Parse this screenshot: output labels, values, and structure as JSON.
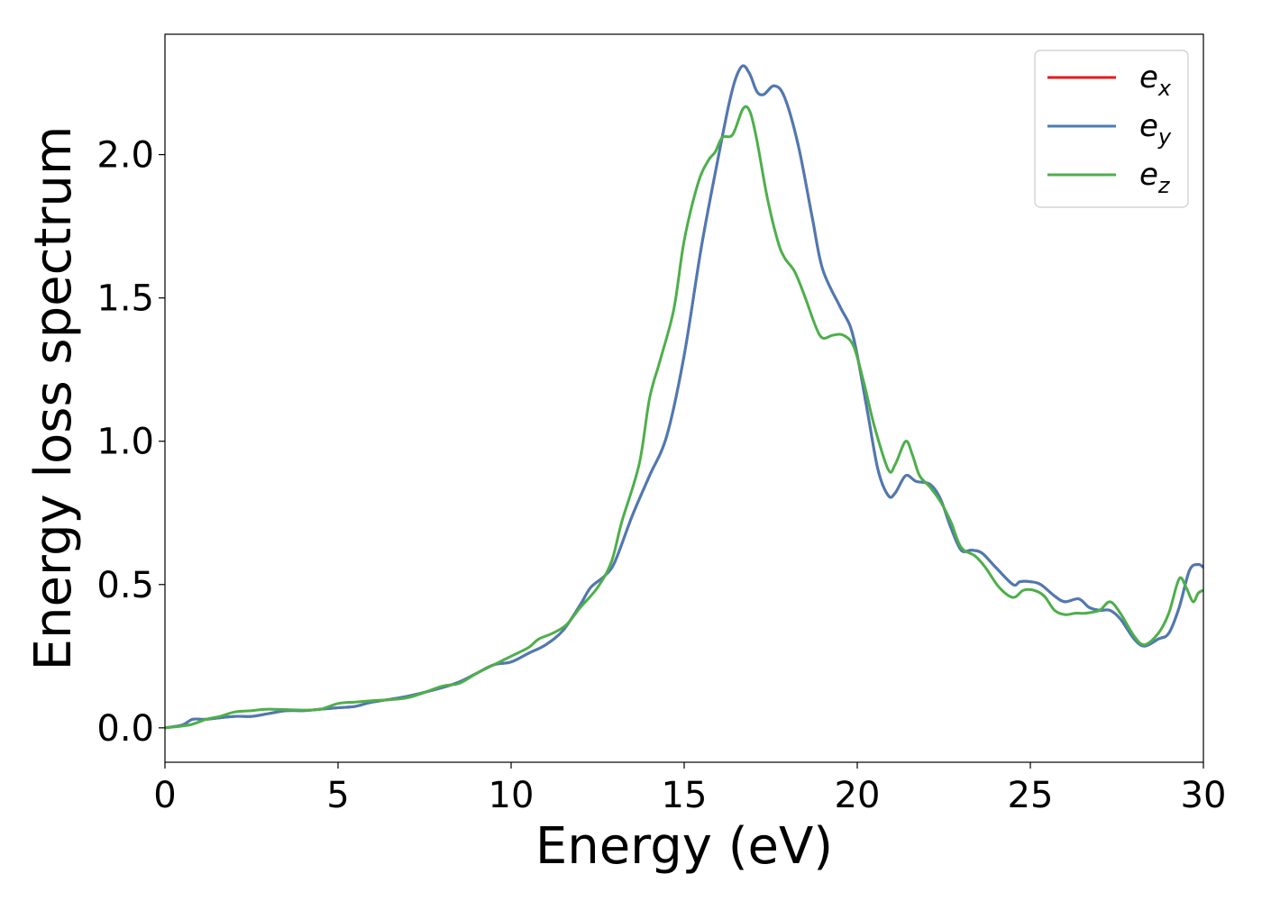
{
  "chart_data": {
    "type": "line",
    "title": "",
    "xlabel": "Energy (eV)",
    "ylabel": "Energy loss spectrum",
    "xlim": [
      0,
      30
    ],
    "ylim": [
      -0.12,
      2.42
    ],
    "x_ticks": [
      0,
      5,
      10,
      15,
      20,
      25,
      30
    ],
    "x_tick_labels": [
      "0",
      "5",
      "10",
      "15",
      "20",
      "25",
      "30"
    ],
    "y_ticks": [
      0.0,
      0.5,
      1.0,
      1.5,
      2.0
    ],
    "y_tick_labels": [
      "0.0",
      "0.5",
      "1.0",
      "1.5",
      "2.0"
    ],
    "grid": false,
    "legend_position": "top-right",
    "series": [
      {
        "name": "e_x",
        "label_base": "e",
        "label_sub": "x",
        "color": "#e41a1c",
        "points": [
          [
            0,
            0
          ],
          [
            0.5,
            0.01
          ],
          [
            0.8,
            0.03
          ],
          [
            1.2,
            0.03
          ],
          [
            2,
            0.04
          ],
          [
            2.5,
            0.04
          ],
          [
            3,
            0.05
          ],
          [
            3.5,
            0.06
          ],
          [
            4,
            0.06
          ],
          [
            4.5,
            0.065
          ],
          [
            5,
            0.07
          ],
          [
            5.5,
            0.075
          ],
          [
            6,
            0.09
          ],
          [
            7,
            0.11
          ],
          [
            8,
            0.14
          ],
          [
            8.5,
            0.16
          ],
          [
            9,
            0.19
          ],
          [
            9.5,
            0.22
          ],
          [
            10,
            0.23
          ],
          [
            10.5,
            0.26
          ],
          [
            11,
            0.29
          ],
          [
            11.5,
            0.34
          ],
          [
            12,
            0.43
          ],
          [
            12.3,
            0.49
          ],
          [
            12.7,
            0.53
          ],
          [
            13,
            0.58
          ],
          [
            13.5,
            0.74
          ],
          [
            14,
            0.88
          ],
          [
            14.5,
            1.02
          ],
          [
            15,
            1.3
          ],
          [
            15.5,
            1.68
          ],
          [
            16,
            2.0
          ],
          [
            16.3,
            2.18
          ],
          [
            16.5,
            2.27
          ],
          [
            16.7,
            2.31
          ],
          [
            16.9,
            2.28
          ],
          [
            17.1,
            2.22
          ],
          [
            17.3,
            2.21
          ],
          [
            17.6,
            2.24
          ],
          [
            17.9,
            2.2
          ],
          [
            18.3,
            2.03
          ],
          [
            18.7,
            1.78
          ],
          [
            19,
            1.6
          ],
          [
            19.5,
            1.47
          ],
          [
            19.8,
            1.4
          ],
          [
            20,
            1.3
          ],
          [
            20.3,
            1.1
          ],
          [
            20.6,
            0.9
          ],
          [
            20.9,
            0.81
          ],
          [
            21.1,
            0.82
          ],
          [
            21.4,
            0.88
          ],
          [
            21.7,
            0.86
          ],
          [
            22.1,
            0.85
          ],
          [
            22.4,
            0.8
          ],
          [
            22.7,
            0.7
          ],
          [
            23,
            0.62
          ],
          [
            23.3,
            0.62
          ],
          [
            23.6,
            0.61
          ],
          [
            24,
            0.56
          ],
          [
            24.5,
            0.5
          ],
          [
            24.7,
            0.51
          ],
          [
            25,
            0.51
          ],
          [
            25.3,
            0.5
          ],
          [
            25.7,
            0.46
          ],
          [
            26,
            0.44
          ],
          [
            26.4,
            0.45
          ],
          [
            26.7,
            0.42
          ],
          [
            27,
            0.41
          ],
          [
            27.3,
            0.41
          ],
          [
            27.6,
            0.38
          ],
          [
            28,
            0.31
          ],
          [
            28.3,
            0.285
          ],
          [
            28.7,
            0.31
          ],
          [
            29,
            0.33
          ],
          [
            29.3,
            0.42
          ],
          [
            29.6,
            0.55
          ],
          [
            29.85,
            0.57
          ],
          [
            30,
            0.56
          ]
        ]
      },
      {
        "name": "e_y",
        "label_base": "e",
        "label_sub": "y",
        "color": "#4a7bb5",
        "points": [
          [
            0,
            0
          ],
          [
            0.5,
            0.01
          ],
          [
            0.8,
            0.03
          ],
          [
            1.2,
            0.03
          ],
          [
            2,
            0.04
          ],
          [
            2.5,
            0.04
          ],
          [
            3,
            0.05
          ],
          [
            3.5,
            0.06
          ],
          [
            4,
            0.06
          ],
          [
            4.5,
            0.065
          ],
          [
            5,
            0.07
          ],
          [
            5.5,
            0.075
          ],
          [
            6,
            0.09
          ],
          [
            7,
            0.11
          ],
          [
            8,
            0.14
          ],
          [
            8.5,
            0.16
          ],
          [
            9,
            0.19
          ],
          [
            9.5,
            0.22
          ],
          [
            10,
            0.23
          ],
          [
            10.5,
            0.26
          ],
          [
            11,
            0.29
          ],
          [
            11.5,
            0.34
          ],
          [
            12,
            0.43
          ],
          [
            12.3,
            0.49
          ],
          [
            12.7,
            0.53
          ],
          [
            13,
            0.58
          ],
          [
            13.5,
            0.74
          ],
          [
            14,
            0.88
          ],
          [
            14.5,
            1.02
          ],
          [
            15,
            1.3
          ],
          [
            15.5,
            1.68
          ],
          [
            16,
            2.0
          ],
          [
            16.3,
            2.18
          ],
          [
            16.5,
            2.27
          ],
          [
            16.7,
            2.31
          ],
          [
            16.9,
            2.28
          ],
          [
            17.1,
            2.22
          ],
          [
            17.3,
            2.21
          ],
          [
            17.6,
            2.24
          ],
          [
            17.9,
            2.2
          ],
          [
            18.3,
            2.03
          ],
          [
            18.7,
            1.78
          ],
          [
            19,
            1.6
          ],
          [
            19.5,
            1.47
          ],
          [
            19.8,
            1.4
          ],
          [
            20,
            1.3
          ],
          [
            20.3,
            1.1
          ],
          [
            20.6,
            0.9
          ],
          [
            20.9,
            0.81
          ],
          [
            21.1,
            0.82
          ],
          [
            21.4,
            0.88
          ],
          [
            21.7,
            0.86
          ],
          [
            22.1,
            0.85
          ],
          [
            22.4,
            0.8
          ],
          [
            22.7,
            0.7
          ],
          [
            23,
            0.62
          ],
          [
            23.3,
            0.62
          ],
          [
            23.6,
            0.61
          ],
          [
            24,
            0.56
          ],
          [
            24.5,
            0.5
          ],
          [
            24.7,
            0.51
          ],
          [
            25,
            0.51
          ],
          [
            25.3,
            0.5
          ],
          [
            25.7,
            0.46
          ],
          [
            26,
            0.44
          ],
          [
            26.4,
            0.45
          ],
          [
            26.7,
            0.42
          ],
          [
            27,
            0.41
          ],
          [
            27.3,
            0.41
          ],
          [
            27.6,
            0.38
          ],
          [
            28,
            0.31
          ],
          [
            28.3,
            0.285
          ],
          [
            28.7,
            0.31
          ],
          [
            29,
            0.33
          ],
          [
            29.3,
            0.42
          ],
          [
            29.6,
            0.55
          ],
          [
            29.85,
            0.57
          ],
          [
            30,
            0.56
          ]
        ]
      },
      {
        "name": "e_z",
        "label_base": "e",
        "label_sub": "z",
        "color": "#4daf4a",
        "points": [
          [
            0,
            0
          ],
          [
            0.7,
            0.01
          ],
          [
            1.2,
            0.03
          ],
          [
            1.6,
            0.04
          ],
          [
            2,
            0.055
          ],
          [
            2.5,
            0.06
          ],
          [
            3,
            0.065
          ],
          [
            4,
            0.062
          ],
          [
            4.5,
            0.065
          ],
          [
            5,
            0.085
          ],
          [
            5.5,
            0.09
          ],
          [
            6,
            0.095
          ],
          [
            7,
            0.105
          ],
          [
            8,
            0.145
          ],
          [
            8.5,
            0.155
          ],
          [
            9,
            0.19
          ],
          [
            9.5,
            0.22
          ],
          [
            10,
            0.25
          ],
          [
            10.5,
            0.28
          ],
          [
            10.8,
            0.31
          ],
          [
            11.2,
            0.33
          ],
          [
            11.6,
            0.36
          ],
          [
            12,
            0.42
          ],
          [
            12.5,
            0.49
          ],
          [
            12.9,
            0.58
          ],
          [
            13.2,
            0.72
          ],
          [
            13.7,
            0.92
          ],
          [
            14,
            1.15
          ],
          [
            14.3,
            1.28
          ],
          [
            14.7,
            1.46
          ],
          [
            15,
            1.7
          ],
          [
            15.4,
            1.9
          ],
          [
            15.7,
            1.98
          ],
          [
            15.9,
            2.01
          ],
          [
            16.1,
            2.06
          ],
          [
            16.4,
            2.07
          ],
          [
            16.7,
            2.16
          ],
          [
            16.9,
            2.15
          ],
          [
            17.1,
            2.05
          ],
          [
            17.4,
            1.85
          ],
          [
            17.7,
            1.7
          ],
          [
            17.9,
            1.64
          ],
          [
            18.2,
            1.59
          ],
          [
            18.5,
            1.5
          ],
          [
            18.8,
            1.4
          ],
          [
            19,
            1.36
          ],
          [
            19.3,
            1.37
          ],
          [
            19.6,
            1.37
          ],
          [
            19.9,
            1.33
          ],
          [
            20.2,
            1.2
          ],
          [
            20.5,
            1.05
          ],
          [
            20.9,
            0.9
          ],
          [
            21.1,
            0.92
          ],
          [
            21.4,
            1.0
          ],
          [
            21.6,
            0.95
          ],
          [
            21.8,
            0.88
          ],
          [
            22.1,
            0.84
          ],
          [
            22.4,
            0.79
          ],
          [
            22.7,
            0.72
          ],
          [
            23,
            0.63
          ],
          [
            23.4,
            0.6
          ],
          [
            23.7,
            0.56
          ],
          [
            24.1,
            0.49
          ],
          [
            24.5,
            0.455
          ],
          [
            24.8,
            0.48
          ],
          [
            25.1,
            0.48
          ],
          [
            25.4,
            0.46
          ],
          [
            25.7,
            0.41
          ],
          [
            26,
            0.395
          ],
          [
            26.3,
            0.4
          ],
          [
            26.6,
            0.4
          ],
          [
            27,
            0.41
          ],
          [
            27.3,
            0.44
          ],
          [
            27.6,
            0.4
          ],
          [
            28,
            0.32
          ],
          [
            28.3,
            0.29
          ],
          [
            28.7,
            0.33
          ],
          [
            29,
            0.4
          ],
          [
            29.3,
            0.52
          ],
          [
            29.5,
            0.49
          ],
          [
            29.7,
            0.44
          ],
          [
            29.85,
            0.47
          ],
          [
            30,
            0.48
          ]
        ]
      }
    ]
  }
}
